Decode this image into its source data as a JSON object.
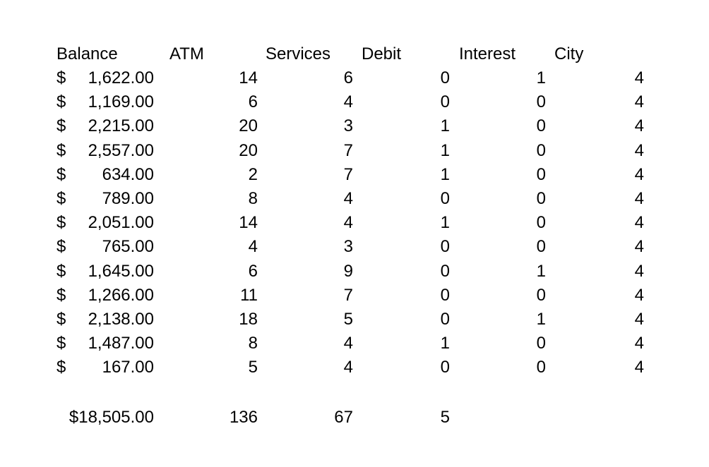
{
  "headers": [
    "Balance",
    "ATM",
    "Services",
    "Debit",
    "Interest",
    "City"
  ],
  "currency_symbol": "$",
  "rows": [
    {
      "balance": "1,622.00",
      "atm": "14",
      "services": "6",
      "debit": "0",
      "interest": "1",
      "city": "4"
    },
    {
      "balance": "1,169.00",
      "atm": "6",
      "services": "4",
      "debit": "0",
      "interest": "0",
      "city": "4"
    },
    {
      "balance": "2,215.00",
      "atm": "20",
      "services": "3",
      "debit": "1",
      "interest": "0",
      "city": "4"
    },
    {
      "balance": "2,557.00",
      "atm": "20",
      "services": "7",
      "debit": "1",
      "interest": "0",
      "city": "4"
    },
    {
      "balance": "634.00",
      "atm": "2",
      "services": "7",
      "debit": "1",
      "interest": "0",
      "city": "4"
    },
    {
      "balance": "789.00",
      "atm": "8",
      "services": "4",
      "debit": "0",
      "interest": "0",
      "city": "4"
    },
    {
      "balance": "2,051.00",
      "atm": "14",
      "services": "4",
      "debit": "1",
      "interest": "0",
      "city": "4"
    },
    {
      "balance": "765.00",
      "atm": "4",
      "services": "3",
      "debit": "0",
      "interest": "0",
      "city": "4"
    },
    {
      "balance": "1,645.00",
      "atm": "6",
      "services": "9",
      "debit": "0",
      "interest": "1",
      "city": "4"
    },
    {
      "balance": "1,266.00",
      "atm": "11",
      "services": "7",
      "debit": "0",
      "interest": "0",
      "city": "4"
    },
    {
      "balance": "2,138.00",
      "atm": "18",
      "services": "5",
      "debit": "0",
      "interest": "1",
      "city": "4"
    },
    {
      "balance": "1,487.00",
      "atm": "8",
      "services": "4",
      "debit": "1",
      "interest": "0",
      "city": "4"
    },
    {
      "balance": "167.00",
      "atm": "5",
      "services": "4",
      "debit": "0",
      "interest": "0",
      "city": "4"
    }
  ],
  "totals": {
    "balance": "$18,505.00",
    "atm": "136",
    "services": "67",
    "debit": "5"
  }
}
